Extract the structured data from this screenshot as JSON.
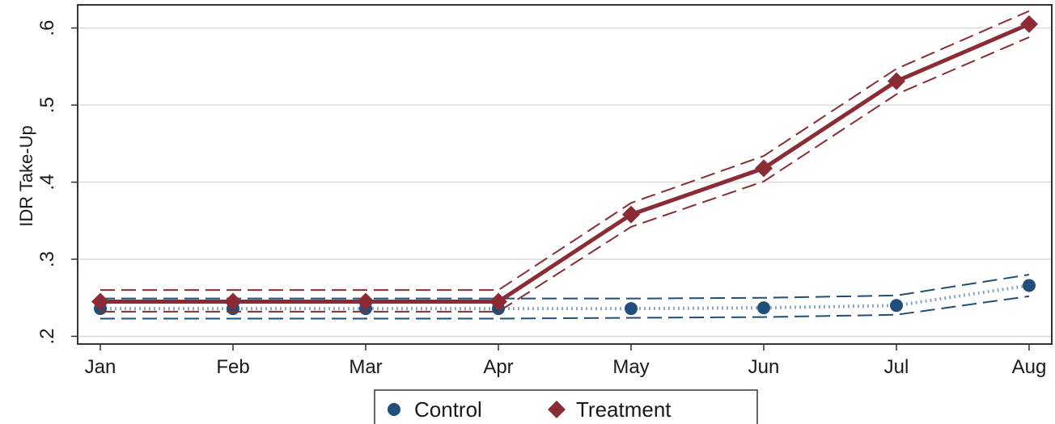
{
  "chart_data": {
    "type": "line",
    "title": "",
    "xlabel": "",
    "ylabel": "IDR Take-Up",
    "categories": [
      "Jan",
      "Feb",
      "Mar",
      "Apr",
      "May",
      "Jun",
      "Jul",
      "Aug"
    ],
    "ylim": [
      0.19,
      0.63
    ],
    "yticks": [
      0.2,
      0.3,
      0.4,
      0.5,
      0.6
    ],
    "ytick_labels": [
      ".2",
      ".3",
      ".4",
      ".5",
      ".6"
    ],
    "grid": true,
    "legend_position": "bottom",
    "series": [
      {
        "name": "Control",
        "marker": "circle",
        "line_style": "dotted",
        "color": "#1f4e79",
        "values": [
          0.236,
          0.236,
          0.236,
          0.236,
          0.236,
          0.237,
          0.24,
          0.266
        ],
        "ci_lower": [
          0.223,
          0.223,
          0.223,
          0.223,
          0.224,
          0.225,
          0.228,
          0.252
        ],
        "ci_upper": [
          0.249,
          0.249,
          0.249,
          0.249,
          0.249,
          0.25,
          0.253,
          0.28
        ]
      },
      {
        "name": "Treatment",
        "marker": "diamond",
        "line_style": "solid",
        "color": "#8b2c34",
        "values": [
          0.245,
          0.245,
          0.245,
          0.245,
          0.358,
          0.418,
          0.531,
          0.605
        ],
        "ci_lower": [
          0.232,
          0.232,
          0.232,
          0.232,
          0.342,
          0.401,
          0.514,
          0.588
        ],
        "ci_upper": [
          0.26,
          0.26,
          0.26,
          0.26,
          0.373,
          0.434,
          0.547,
          0.622
        ]
      }
    ]
  }
}
